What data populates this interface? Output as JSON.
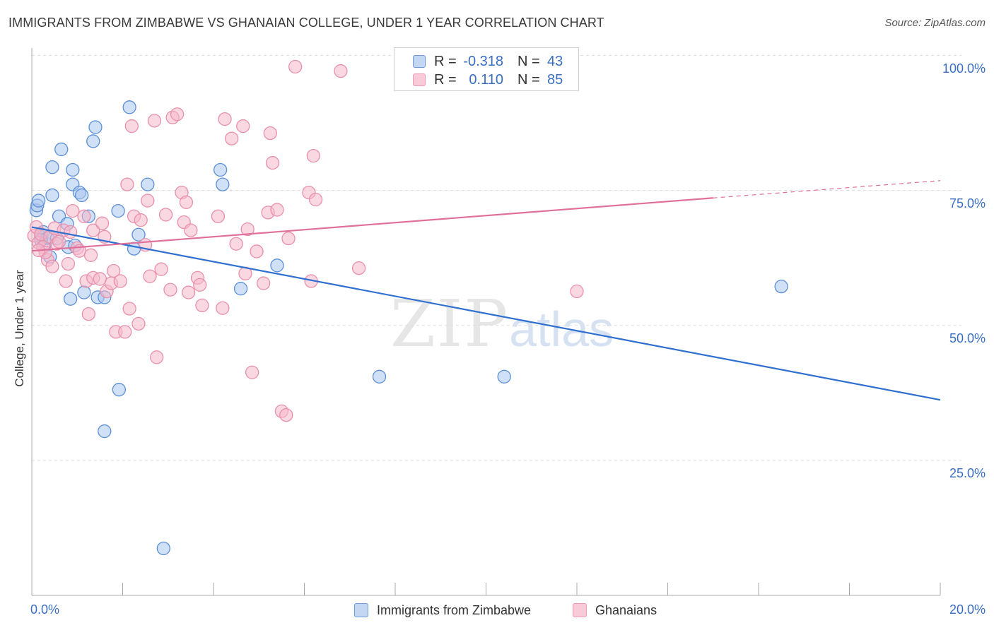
{
  "title": "IMMIGRANTS FROM ZIMBABWE VS GHANAIAN COLLEGE, UNDER 1 YEAR CORRELATION CHART",
  "source": "Source: ZipAtlas.com",
  "watermark": {
    "zip": "ZIP",
    "atlas": "atlas"
  },
  "legend": {
    "r_label": "R =",
    "n_label": "N =",
    "series1": {
      "r": "-0.318",
      "n": "43"
    },
    "series2": {
      "r": "0.110",
      "n": "85"
    }
  },
  "colors": {
    "blue_fill": "#a9c6ee",
    "blue_stroke": "#5b8fd6",
    "blue_line": "#2f6fd0",
    "pink_fill": "#f5b8cb",
    "pink_stroke": "#e890ac",
    "pink_line": "#e0709a",
    "grid": "#dddddd",
    "axis_text": "#3a6fc4"
  },
  "chart_data": {
    "type": "scatter",
    "title": "IMMIGRANTS FROM ZIMBABWE VS GHANAIAN COLLEGE, UNDER 1 YEAR CORRELATION CHART",
    "xlabel": "",
    "ylabel": "College, Under 1 year",
    "xlim": [
      0,
      20
    ],
    "ylim": [
      0,
      102
    ],
    "x_tick_labels": [
      "0.0%",
      "20.0%"
    ],
    "y_ticks": [
      25,
      50,
      75,
      100
    ],
    "y_tick_labels": [
      "25.0%",
      "50.0%",
      "75.0%",
      "100.0%"
    ],
    "grid": true,
    "legend_position": "bottom",
    "series": [
      {
        "name": "Immigrants from Zimbabwe",
        "r": -0.318,
        "n": 43,
        "trend": {
          "x": [
            0,
            20
          ],
          "y": [
            68.2,
            36.2
          ],
          "dashed_from": null
        },
        "points": [
          [
            0.1,
            71.3
          ],
          [
            0.12,
            72.2
          ],
          [
            0.15,
            73.1
          ],
          [
            0.2,
            66.4
          ],
          [
            0.25,
            67.3
          ],
          [
            0.3,
            65.2
          ],
          [
            0.35,
            66.2
          ],
          [
            0.45,
            74.1
          ],
          [
            0.45,
            79.3
          ],
          [
            0.6,
            70.2
          ],
          [
            0.65,
            82.6
          ],
          [
            0.78,
            68.8
          ],
          [
            0.8,
            64.5
          ],
          [
            0.85,
            54.9
          ],
          [
            0.9,
            78.8
          ],
          [
            0.9,
            76.1
          ],
          [
            1.05,
            74.6
          ],
          [
            1.1,
            74.1
          ],
          [
            1.15,
            56.1
          ],
          [
            1.25,
            70.2
          ],
          [
            1.35,
            84.1
          ],
          [
            1.4,
            86.7
          ],
          [
            1.45,
            55.2
          ],
          [
            1.6,
            55.2
          ],
          [
            1.6,
            30.4
          ],
          [
            1.9,
            71.2
          ],
          [
            1.92,
            38.1
          ],
          [
            2.15,
            90.4
          ],
          [
            2.25,
            64.2
          ],
          [
            2.35,
            66.8
          ],
          [
            2.55,
            76.1
          ],
          [
            2.9,
            8.7
          ],
          [
            4.15,
            78.8
          ],
          [
            4.2,
            76.1
          ],
          [
            4.6,
            56.8
          ],
          [
            5.4,
            61.1
          ],
          [
            7.65,
            40.5
          ],
          [
            10.4,
            40.5
          ],
          [
            16.5,
            57.2
          ],
          [
            0.4,
            62.7
          ],
          [
            0.55,
            66.1
          ],
          [
            0.95,
            64.8
          ],
          [
            0.2,
            65.8
          ]
        ]
      },
      {
        "name": "Ghanaians",
        "r": 0.11,
        "n": 85,
        "trend": {
          "x": [
            0,
            15
          ],
          "y": [
            63.8,
            73.6
          ],
          "dashed_from": 15,
          "dashed_to": [
            20,
            76.8
          ]
        },
        "points": [
          [
            0.05,
            66.6
          ],
          [
            0.1,
            68.2
          ],
          [
            0.15,
            65.3
          ],
          [
            0.2,
            66.9
          ],
          [
            0.25,
            64.5
          ],
          [
            0.35,
            62.1
          ],
          [
            0.4,
            66.4
          ],
          [
            0.5,
            68.0
          ],
          [
            0.55,
            65.1
          ],
          [
            0.7,
            67.6
          ],
          [
            0.75,
            58.2
          ],
          [
            0.8,
            61.4
          ],
          [
            0.85,
            67.3
          ],
          [
            0.9,
            71.2
          ],
          [
            1.0,
            64.3
          ],
          [
            1.05,
            63.8
          ],
          [
            1.15,
            70.2
          ],
          [
            1.2,
            58.2
          ],
          [
            1.25,
            52.1
          ],
          [
            1.35,
            58.8
          ],
          [
            1.35,
            67.6
          ],
          [
            1.5,
            58.6
          ],
          [
            1.55,
            68.9
          ],
          [
            1.6,
            66.4
          ],
          [
            1.65,
            56.3
          ],
          [
            1.75,
            57.8
          ],
          [
            1.8,
            60.1
          ],
          [
            1.85,
            48.8
          ],
          [
            1.95,
            58.2
          ],
          [
            2.05,
            48.8
          ],
          [
            2.1,
            76.1
          ],
          [
            2.15,
            53.1
          ],
          [
            2.2,
            86.9
          ],
          [
            2.25,
            70.2
          ],
          [
            2.35,
            50.3
          ],
          [
            2.4,
            69.5
          ],
          [
            2.5,
            64.9
          ],
          [
            2.55,
            73.1
          ],
          [
            2.6,
            59.1
          ],
          [
            2.7,
            87.9
          ],
          [
            2.75,
            44.1
          ],
          [
            2.85,
            60.4
          ],
          [
            2.95,
            70.5
          ],
          [
            3.05,
            56.6
          ],
          [
            3.1,
            88.5
          ],
          [
            3.2,
            89.1
          ],
          [
            3.3,
            74.6
          ],
          [
            3.35,
            69.1
          ],
          [
            3.4,
            72.8
          ],
          [
            3.45,
            56.1
          ],
          [
            3.5,
            67.6
          ],
          [
            3.65,
            58.8
          ],
          [
            3.7,
            57.5
          ],
          [
            3.75,
            53.7
          ],
          [
            4.1,
            70.2
          ],
          [
            4.2,
            53.2
          ],
          [
            4.25,
            88.2
          ],
          [
            4.4,
            84.6
          ],
          [
            4.5,
            65.1
          ],
          [
            4.65,
            86.9
          ],
          [
            4.7,
            59.6
          ],
          [
            4.75,
            67.8
          ],
          [
            4.85,
            41.3
          ],
          [
            4.95,
            63.7
          ],
          [
            5.1,
            57.8
          ],
          [
            5.2,
            70.9
          ],
          [
            5.25,
            85.6
          ],
          [
            5.3,
            80.1
          ],
          [
            5.4,
            71.4
          ],
          [
            5.5,
            34.1
          ],
          [
            5.6,
            33.4
          ],
          [
            5.65,
            66.1
          ],
          [
            5.8,
            97.9
          ],
          [
            6.1,
            74.6
          ],
          [
            6.15,
            58.2
          ],
          [
            6.2,
            81.4
          ],
          [
            6.25,
            73.3
          ],
          [
            6.8,
            97.1
          ],
          [
            7.2,
            60.6
          ],
          [
            12.0,
            56.3
          ],
          [
            0.3,
            63.5
          ],
          [
            0.6,
            65.5
          ],
          [
            1.3,
            63.0
          ],
          [
            0.15,
            63.9
          ],
          [
            0.45,
            60.9
          ]
        ]
      }
    ]
  }
}
